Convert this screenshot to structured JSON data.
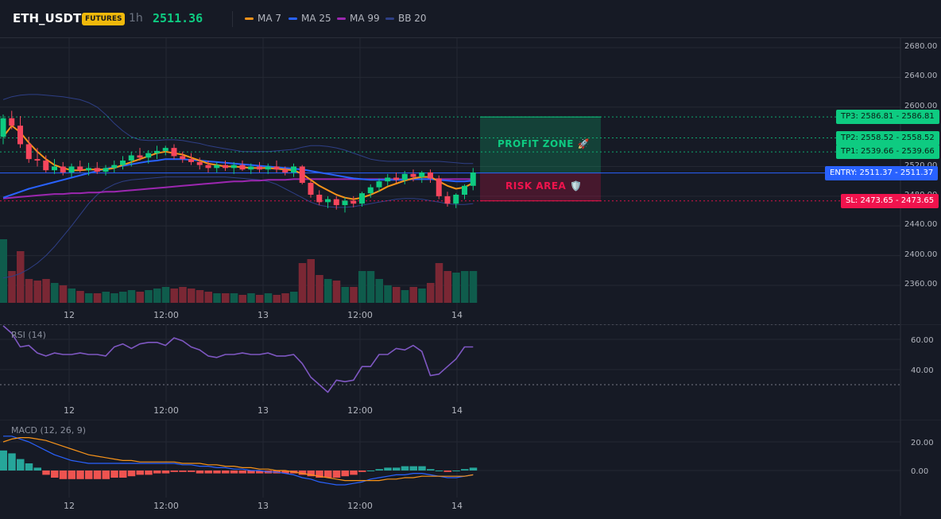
{
  "header": {
    "symbol": "ETH_USDT",
    "badge": "FUTURES",
    "interval": "1h",
    "last_price": "2511.36",
    "indicators": [
      {
        "label": "MA 7",
        "color": "#f7931a"
      },
      {
        "label": "MA 25",
        "color": "#2962ff"
      },
      {
        "label": "MA 99",
        "color": "#9c27b0"
      },
      {
        "label": "BB 20",
        "color": "#2e3f86"
      }
    ]
  },
  "colors": {
    "up": "#0ecb81",
    "down": "#f6465d",
    "vol_up": "#0f5c4c",
    "vol_down": "#7a2734",
    "grid": "#242833",
    "entry": "#2962ff",
    "tp": "#0ecb81",
    "sl": "#f0134d",
    "rsi": "#7e57c2",
    "macd_line": "#2962ff",
    "signal_line": "#f7931a",
    "hist_up": "#26a69a",
    "hist_down": "#ef5350"
  },
  "price_axis": {
    "labels": [
      "2680.00",
      "2640.00",
      "2600.00",
      "2520.00",
      "2480.00",
      "2440.00",
      "2400.00",
      "2360.00"
    ],
    "values": [
      2680,
      2640,
      2600,
      2520,
      2480,
      2440,
      2400,
      2360
    ]
  },
  "time_axis": [
    "12",
    "12:00",
    "13",
    "12:00",
    "14"
  ],
  "levels": {
    "tp3": {
      "label": "TP3: 2586.81",
      "price": "2586.81",
      "value": 2586.81
    },
    "tp2": {
      "label": "TP2: 2558.52",
      "price": "2558.52",
      "value": 2558.52
    },
    "tp1": {
      "label": "TP1: 2539.66",
      "price": "2539.66",
      "value": 2539.66
    },
    "entry": {
      "label": "ENTRY: 2511.37",
      "price": "2511.37",
      "value": 2511.37
    },
    "sl": {
      "label": "SL: 2473.65",
      "price": "2473.65",
      "value": 2473.65
    }
  },
  "zones": {
    "profit": "PROFIT ZONE 🚀",
    "risk": "RISK AREA 🛡️"
  },
  "rsi": {
    "title": "RSI (14)",
    "axis_labels": [
      "60.00",
      "40.00"
    ],
    "axis_values": [
      60,
      40
    ],
    "upper_band": 70,
    "lower_band": 30,
    "ymin": 20,
    "ymax": 75
  },
  "macd": {
    "title": "MACD (12, 26, 9)",
    "axis_labels": [
      "20.00",
      "0.00"
    ],
    "axis_values": [
      20,
      0
    ],
    "ymin": -12,
    "ymax": 30
  },
  "chart_data": {
    "type": "candlestick",
    "price_range": [
      2340,
      2700
    ],
    "candles": [
      [
        2560,
        2590,
        2550,
        2585
      ],
      [
        2585,
        2595,
        2570,
        2575
      ],
      [
        2575,
        2588,
        2545,
        2550
      ],
      [
        2550,
        2560,
        2525,
        2530
      ],
      [
        2530,
        2545,
        2520,
        2528
      ],
      [
        2528,
        2535,
        2512,
        2515
      ],
      [
        2515,
        2530,
        2510,
        2520
      ],
      [
        2520,
        2526,
        2508,
        2512
      ],
      [
        2512,
        2524,
        2506,
        2520
      ],
      [
        2520,
        2528,
        2512,
        2515
      ],
      [
        2515,
        2525,
        2508,
        2518
      ],
      [
        2518,
        2526,
        2510,
        2513
      ],
      [
        2513,
        2522,
        2508,
        2518
      ],
      [
        2518,
        2528,
        2512,
        2522
      ],
      [
        2522,
        2534,
        2516,
        2528
      ],
      [
        2528,
        2540,
        2520,
        2535
      ],
      [
        2535,
        2545,
        2528,
        2532
      ],
      [
        2532,
        2542,
        2524,
        2538
      ],
      [
        2538,
        2548,
        2530,
        2541
      ],
      [
        2541,
        2548,
        2535,
        2545
      ],
      [
        2545,
        2550,
        2530,
        2534
      ],
      [
        2534,
        2540,
        2525,
        2530
      ],
      [
        2530,
        2538,
        2522,
        2526
      ],
      [
        2526,
        2532,
        2516,
        2522
      ],
      [
        2522,
        2528,
        2512,
        2518
      ],
      [
        2518,
        2526,
        2512,
        2522
      ],
      [
        2522,
        2528,
        2514,
        2518
      ],
      [
        2518,
        2526,
        2510,
        2522
      ],
      [
        2522,
        2528,
        2514,
        2516
      ],
      [
        2516,
        2524,
        2510,
        2520
      ],
      [
        2520,
        2526,
        2512,
        2516
      ],
      [
        2516,
        2524,
        2510,
        2520
      ],
      [
        2520,
        2528,
        2512,
        2516
      ],
      [
        2516,
        2520,
        2508,
        2512
      ],
      [
        2512,
        2524,
        2506,
        2520
      ],
      [
        2520,
        2522,
        2496,
        2498
      ],
      [
        2498,
        2502,
        2478,
        2482
      ],
      [
        2482,
        2488,
        2468,
        2472
      ],
      [
        2472,
        2480,
        2464,
        2476
      ],
      [
        2476,
        2480,
        2462,
        2468
      ],
      [
        2468,
        2478,
        2458,
        2474
      ],
      [
        2474,
        2480,
        2465,
        2470
      ],
      [
        2470,
        2486,
        2466,
        2484
      ],
      [
        2484,
        2496,
        2478,
        2492
      ],
      [
        2492,
        2504,
        2486,
        2500
      ],
      [
        2500,
        2510,
        2494,
        2505
      ],
      [
        2505,
        2512,
        2498,
        2502
      ],
      [
        2502,
        2514,
        2496,
        2510
      ],
      [
        2510,
        2516,
        2500,
        2506
      ],
      [
        2506,
        2514,
        2498,
        2512
      ],
      [
        2512,
        2516,
        2498,
        2504
      ],
      [
        2504,
        2508,
        2476,
        2480
      ],
      [
        2480,
        2486,
        2466,
        2470
      ],
      [
        2470,
        2484,
        2464,
        2482
      ],
      [
        2482,
        2496,
        2476,
        2494
      ],
      [
        2494,
        2518,
        2488,
        2512
      ]
    ],
    "volumes": [
      80,
      40,
      65,
      30,
      28,
      30,
      25,
      22,
      18,
      15,
      12,
      12,
      14,
      12,
      14,
      16,
      14,
      16,
      18,
      20,
      18,
      20,
      18,
      16,
      14,
      12,
      12,
      12,
      10,
      12,
      10,
      12,
      10,
      12,
      14,
      50,
      55,
      35,
      30,
      28,
      20,
      20,
      40,
      40,
      30,
      22,
      20,
      16,
      20,
      18,
      25,
      50,
      40,
      38,
      40,
      40
    ],
    "ma7": [
      2560,
      2575,
      2566,
      2552,
      2540,
      2530,
      2522,
      2518,
      2515,
      2515,
      2516,
      2516,
      2516,
      2518,
      2522,
      2526,
      2530,
      2534,
      2538,
      2540,
      2538,
      2536,
      2532,
      2528,
      2524,
      2522,
      2520,
      2520,
      2519,
      2518,
      2518,
      2518,
      2517,
      2516,
      2515,
      2510,
      2502,
      2494,
      2488,
      2482,
      2478,
      2476,
      2478,
      2482,
      2487,
      2493,
      2497,
      2501,
      2504,
      2506,
      2506,
      2500,
      2494,
      2490,
      2492,
      2498
    ],
    "ma25": [
      2478,
      2482,
      2486,
      2490,
      2493,
      2496,
      2499,
      2502,
      2505,
      2508,
      2511,
      2514,
      2517,
      2519,
      2521,
      2523,
      2525,
      2527,
      2528,
      2530,
      2530,
      2530,
      2529,
      2528,
      2527,
      2526,
      2525,
      2524,
      2523,
      2522,
      2521,
      2520,
      2519,
      2518,
      2517,
      2516,
      2514,
      2512,
      2510,
      2508,
      2506,
      2504,
      2503,
      2502,
      2502,
      2502,
      2502,
      2502,
      2503,
      2503,
      2503,
      2502,
      2501,
      2500,
      2500,
      2501
    ],
    "ma99": [
      2477,
      2478,
      2479,
      2480,
      2481,
      2482,
      2483,
      2483,
      2484,
      2484,
      2485,
      2485,
      2486,
      2486,
      2487,
      2488,
      2489,
      2490,
      2491,
      2492,
      2493,
      2494,
      2495,
      2496,
      2497,
      2498,
      2499,
      2500,
      2500,
      2501,
      2501,
      2502,
      2502,
      2502,
      2503,
      2503,
      2503,
      2503,
      2503,
      2503,
      2503,
      2503,
      2503,
      2503,
      2503,
      2503,
      2503,
      2503,
      2503,
      2503,
      2503,
      2503,
      2503,
      2503,
      2503,
      2503
    ],
    "bb_upper": [
      2610,
      2614,
      2616,
      2617,
      2617,
      2616,
      2615,
      2614,
      2612,
      2610,
      2606,
      2600,
      2590,
      2578,
      2568,
      2560,
      2556,
      2555,
      2555,
      2556,
      2556,
      2555,
      2553,
      2551,
      2548,
      2546,
      2544,
      2542,
      2540,
      2540,
      2540,
      2540,
      2541,
      2542,
      2543,
      2546,
      2548,
      2548,
      2547,
      2545,
      2542,
      2538,
      2534,
      2530,
      2528,
      2527,
      2527,
      2527,
      2527,
      2527,
      2527,
      2527,
      2526,
      2525,
      2524,
      2524
    ],
    "bb_lower": [
      2370,
      2372,
      2376,
      2382,
      2390,
      2400,
      2412,
      2426,
      2440,
      2455,
      2470,
      2482,
      2490,
      2496,
      2500,
      2502,
      2503,
      2504,
      2505,
      2506,
      2506,
      2506,
      2506,
      2506,
      2506,
      2506,
      2506,
      2505,
      2504,
      2503,
      2502,
      2500,
      2496,
      2490,
      2484,
      2478,
      2472,
      2468,
      2466,
      2465,
      2465,
      2466,
      2468,
      2470,
      2472,
      2474,
      2476,
      2477,
      2477,
      2476,
      2474,
      2472,
      2470,
      2469,
      2469,
      2470
    ],
    "rsi": [
      69,
      64,
      55,
      56,
      51,
      49,
      51,
      50,
      50,
      51,
      50,
      50,
      49,
      55,
      57,
      54,
      57,
      58,
      58,
      56,
      61,
      59,
      55,
      53,
      49,
      48,
      50,
      50,
      51,
      50,
      50,
      51,
      49,
      49,
      50,
      44,
      35,
      30,
      25,
      33,
      32,
      33,
      42,
      42,
      50,
      50,
      54,
      53,
      56,
      52,
      36,
      37,
      42,
      47,
      55,
      55
    ],
    "macd": [
      24,
      24,
      22,
      20,
      17,
      14,
      11,
      9,
      7,
      6,
      5,
      5,
      5,
      5,
      5,
      5,
      5,
      5,
      5,
      5,
      5,
      4,
      4,
      3,
      3,
      2,
      2,
      1,
      1,
      0,
      0,
      -1,
      -1,
      -2,
      -3,
      -5,
      -6,
      -8,
      -9,
      -10,
      -10,
      -9,
      -8,
      -6,
      -5,
      -4,
      -3,
      -3,
      -2,
      -2,
      -3,
      -4,
      -5,
      -5,
      -4,
      -3
    ],
    "signal": [
      20,
      22,
      23,
      23,
      22,
      21,
      19,
      17,
      15,
      13,
      11,
      10,
      9,
      8,
      7,
      7,
      6,
      6,
      6,
      6,
      6,
      5,
      5,
      5,
      4,
      4,
      3,
      3,
      2,
      2,
      1,
      1,
      0,
      0,
      -1,
      -2,
      -3,
      -4,
      -5,
      -6,
      -7,
      -7,
      -7,
      -7,
      -7,
      -6,
      -6,
      -5,
      -5,
      -4,
      -4,
      -4,
      -4,
      -4,
      -4,
      -3
    ],
    "hist": [
      14,
      12,
      8,
      5,
      2,
      -3,
      -5,
      -6,
      -6,
      -6,
      -6,
      -6,
      -6,
      -5,
      -5,
      -4,
      -3,
      -3,
      -2,
      -2,
      -1,
      -1,
      -1,
      -2,
      -2,
      -2,
      -2,
      -2,
      -2,
      -2,
      -2,
      -2,
      -2,
      -2,
      -2,
      -3,
      -4,
      -5,
      -5,
      -5,
      -4,
      -3,
      -1,
      0,
      1,
      2,
      2,
      3,
      3,
      3,
      1,
      0,
      -1,
      0,
      1,
      2
    ]
  }
}
